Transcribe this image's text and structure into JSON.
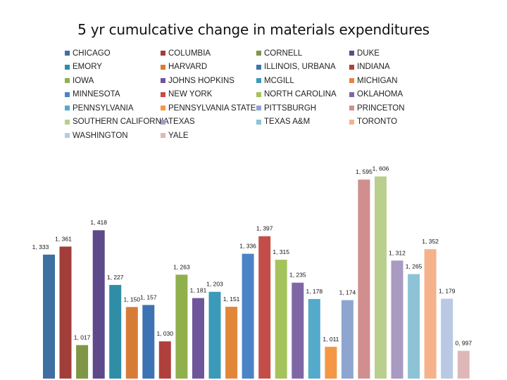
{
  "chart_data": {
    "type": "bar",
    "title": "5 yr cumulcative change in materials expenditures",
    "xlabel": "",
    "ylabel": "",
    "ylim": [
      0.9,
      1.62
    ],
    "legend_placement": "top",
    "grid": false,
    "categories": [
      "CHICAGO",
      "COLUMBIA",
      "CORNELL",
      "DUKE",
      "EMORY",
      "HARVARD",
      "ILLINOIS, URBANA",
      "INDIANA",
      "IOWA",
      "JOHNS HOPKINS",
      "MCGILL",
      "MICHIGAN",
      "MINNESOTA",
      "NEW YORK",
      "NORTH CAROLINA",
      "OKLAHOMA",
      "PENNSYLVANIA",
      "PENNSYLVANIA STATE",
      "PITTSBURGH",
      "PRINCETON",
      "SOUTHERN CALIFORNIA",
      "TEXAS",
      "TEXAS A&M",
      "TORONTO",
      "WASHINGTON",
      "YALE"
    ],
    "values": [
      1.333,
      1.361,
      1.017,
      1.418,
      1.227,
      1.15,
      1.157,
      1.03,
      1.263,
      1.181,
      1.203,
      1.151,
      1.336,
      1.397,
      1.315,
      1.235,
      1.178,
      1.011,
      1.174,
      1.595,
      1.606,
      1.312,
      1.265,
      1.352,
      1.179,
      0.997
    ],
    "labels": [
      "1, 333",
      "1, 361",
      "1, 017",
      "1, 418",
      "1, 227",
      "1, 150",
      "1, 157",
      "1, 030",
      "1, 263",
      "1, 181",
      "1, 203",
      "1, 151",
      "1, 336",
      "1, 397",
      "1, 315",
      "1, 235",
      "1, 178",
      "1, 011",
      "1, 174",
      "1, 595",
      "1, 606",
      "1, 312",
      "1, 265",
      "1, 352",
      "1, 179",
      "0, 997"
    ],
    "colors": [
      "#3E6FA1",
      "#A23E3A",
      "#7E9645",
      "#5E4A8A",
      "#2F8DA6",
      "#D77C37",
      "#3D73B3",
      "#B0403C",
      "#8FB04C",
      "#6F5599",
      "#3A9AB8",
      "#E2873A",
      "#4B84C6",
      "#C54D49",
      "#A5C35C",
      "#7F67A6",
      "#53AACB",
      "#F49744",
      "#8EA6CF",
      "#D08E8F",
      "#B9CF8D",
      "#A89AC0",
      "#8CC3D7",
      "#F5B28B",
      "#B9C9E3",
      "#DEB8B8"
    ]
  }
}
